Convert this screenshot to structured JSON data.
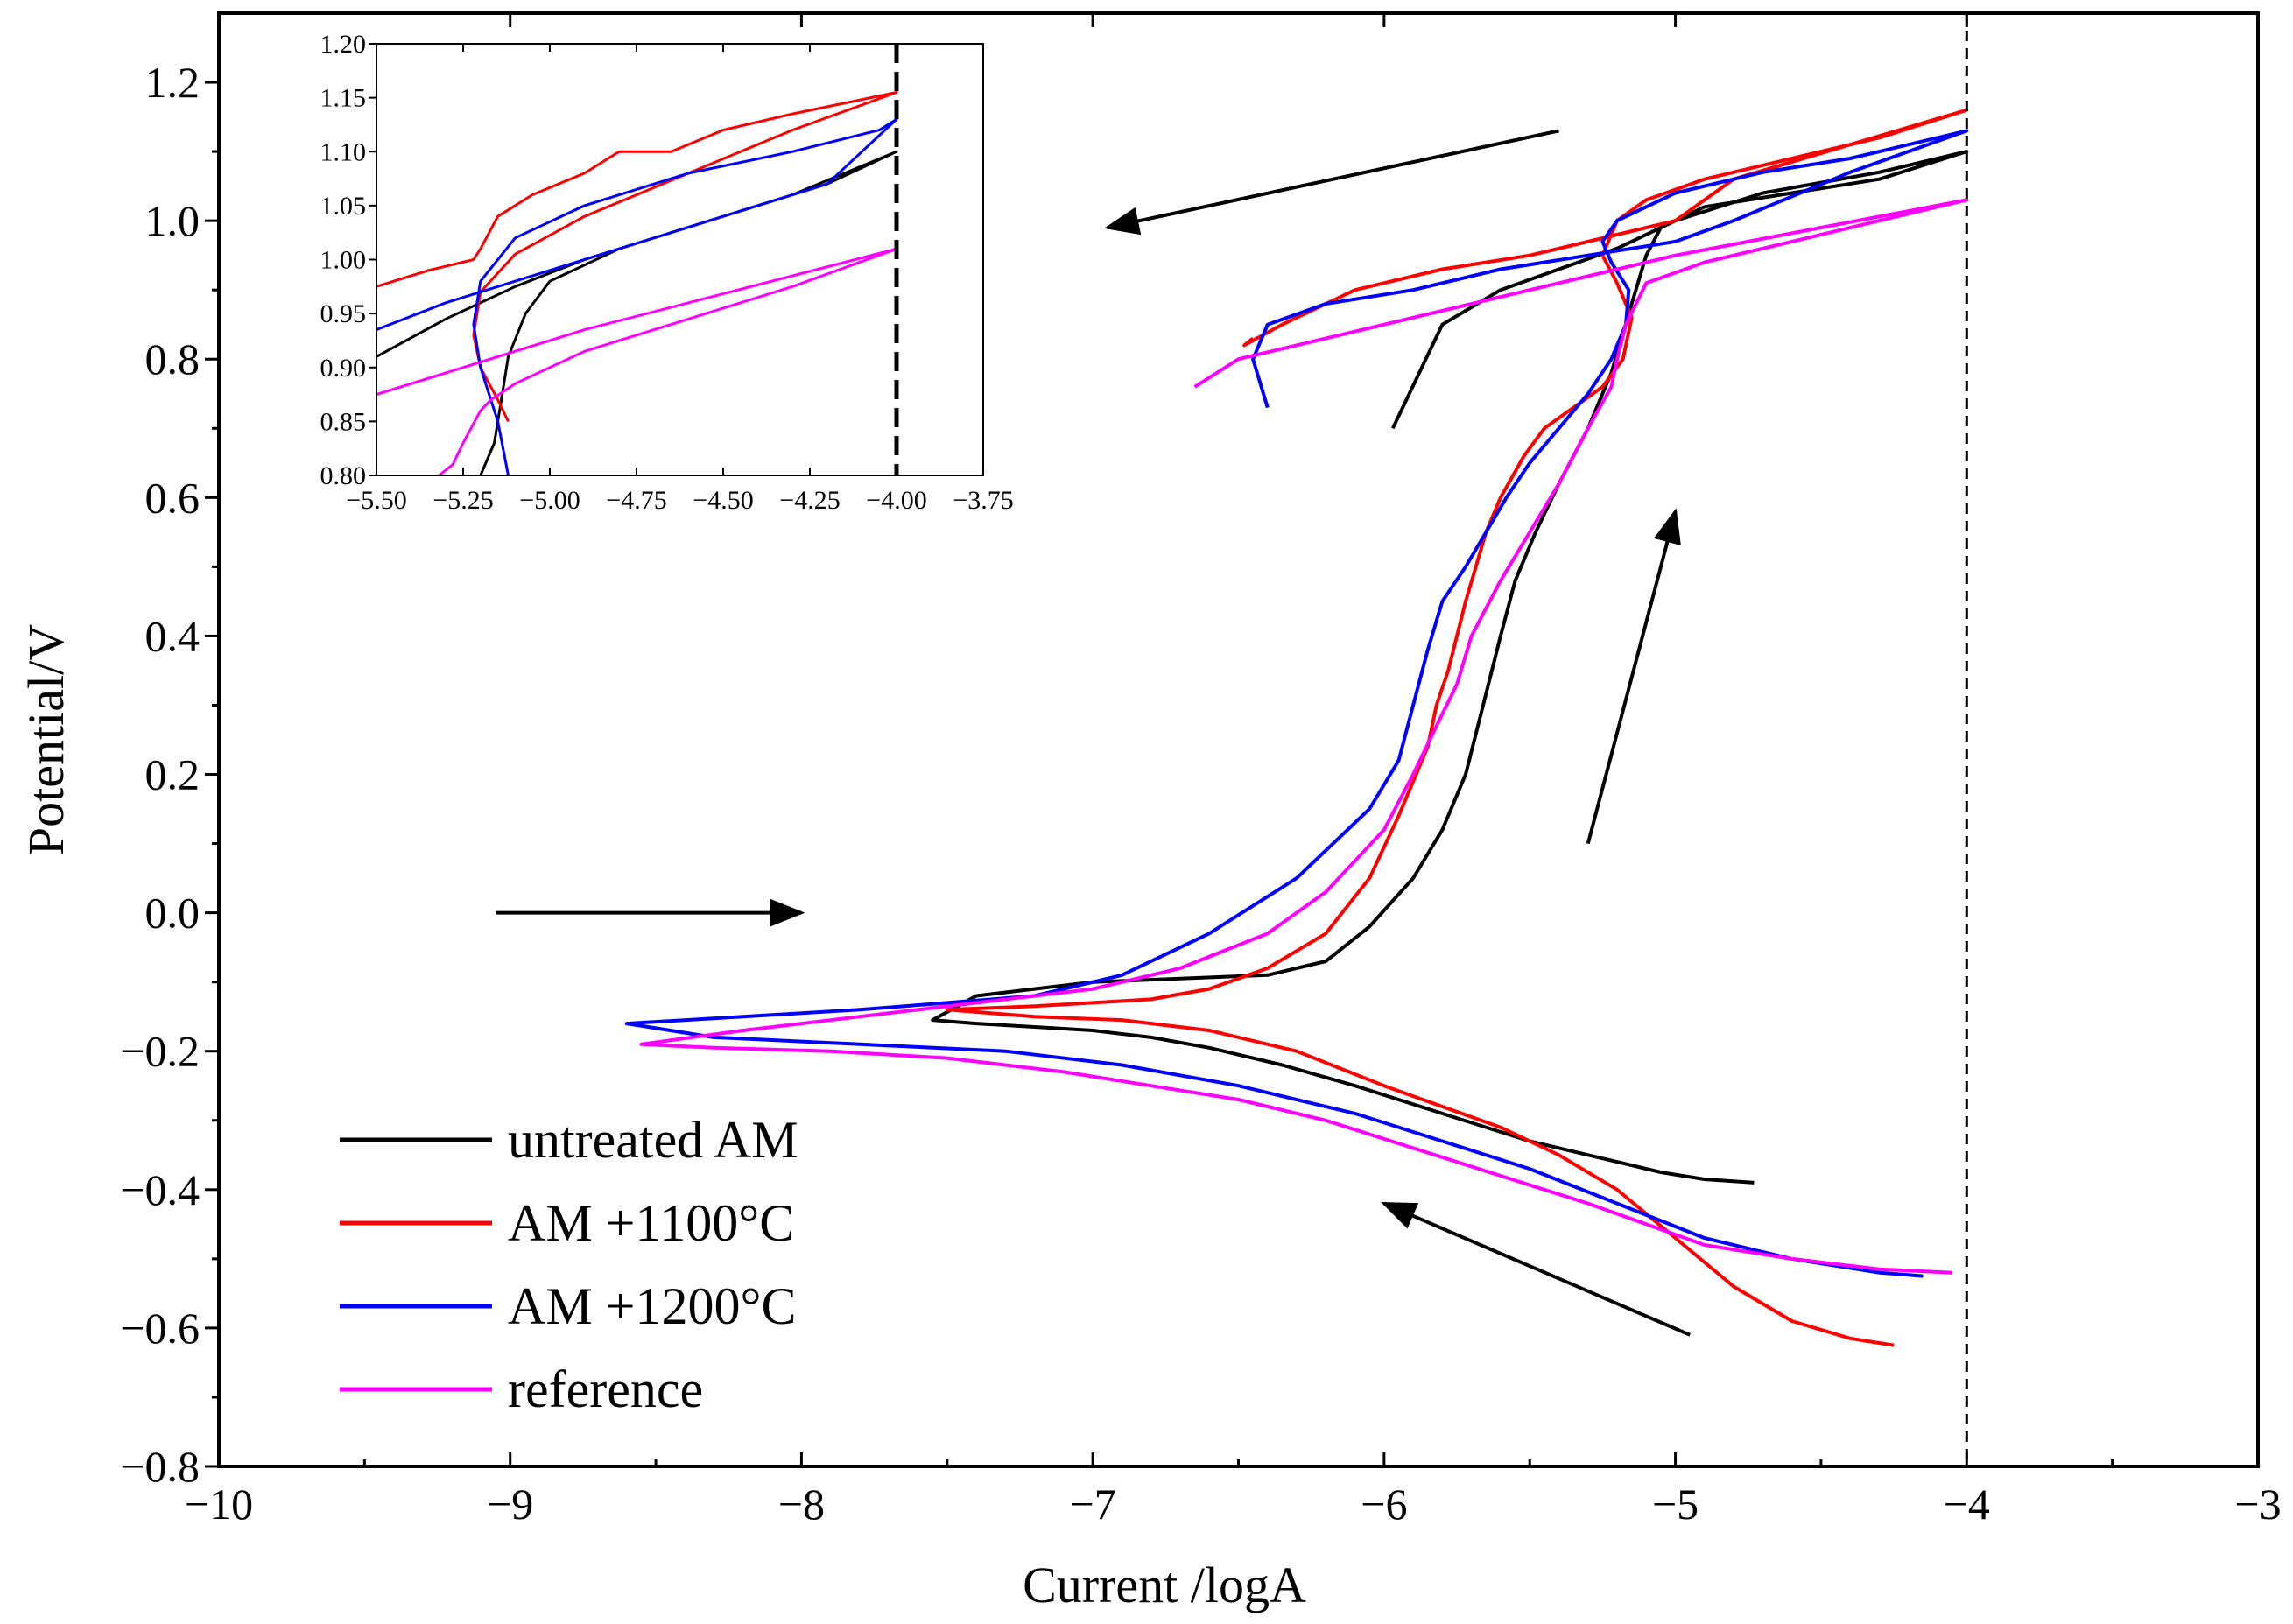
{
  "chart_data": [
    {
      "id": "main",
      "type": "line",
      "xlabel": "Current /logA",
      "ylabel": "Potential/V",
      "xlim": [
        -10,
        -3
      ],
      "ylim": [
        -0.8,
        1.3
      ],
      "xticks": [
        -10,
        -9,
        -8,
        -7,
        -6,
        -5,
        -4,
        -3
      ],
      "xtick_labels": [
        "−10",
        "−9",
        "−8",
        "−7",
        "−6",
        "−5",
        "−4",
        "−3"
      ],
      "yticks": [
        -0.8,
        -0.6,
        -0.4,
        -0.2,
        0.0,
        0.2,
        0.4,
        0.6,
        0.8,
        1.0,
        1.2
      ],
      "ytick_labels": [
        "−0.8",
        "−0.6",
        "−0.4",
        "−0.2",
        "0.0",
        "0.2",
        "0.4",
        "0.6",
        "0.8",
        "1.0",
        "1.2"
      ],
      "vline_x": -4,
      "legend": {
        "position": "bottom-left",
        "entries": [
          "untreated AM",
          "AM +1100°C",
          "AM +1200°C",
          "reference"
        ]
      },
      "arrows": [
        {
          "name": "forward-scan-arrow",
          "from": [
            -9.05,
            0.0
          ],
          "to": [
            -8.0,
            0.0
          ]
        },
        {
          "name": "anodic-rise-arrow",
          "from": [
            -5.3,
            0.1
          ],
          "to": [
            -5.0,
            0.58
          ]
        },
        {
          "name": "reverse-scan-arrow",
          "from": [
            -5.4,
            1.13
          ],
          "to": [
            -6.95,
            0.99
          ]
        },
        {
          "name": "cathodic-return-arrow",
          "from": [
            -4.95,
            -0.61
          ],
          "to": [
            -6.0,
            -0.42
          ]
        }
      ],
      "series": [
        {
          "name": "untreated AM",
          "color": "#000000",
          "x": [
            -4.73,
            -4.9,
            -5.05,
            -5.25,
            -5.5,
            -5.8,
            -6.1,
            -6.35,
            -6.6,
            -6.8,
            -7.0,
            -7.2,
            -7.4,
            -7.55,
            -7.4,
            -7.0,
            -6.7,
            -6.4,
            -6.2,
            -6.05,
            -5.9,
            -5.8,
            -5.72,
            -5.66,
            -5.6,
            -5.55,
            -5.48,
            -5.4,
            -5.3,
            -5.22,
            -5.17,
            -5.15,
            -5.1,
            -5.05,
            -4.9,
            -4.6,
            -4.3,
            -4.0,
            -4.3,
            -4.7,
            -5.0,
            -5.2,
            -5.4,
            -5.6,
            -5.8,
            -5.97
          ],
          "y": [
            -0.39,
            -0.385,
            -0.375,
            -0.355,
            -0.33,
            -0.29,
            -0.25,
            -0.22,
            -0.195,
            -0.18,
            -0.17,
            -0.165,
            -0.16,
            -0.155,
            -0.12,
            -0.1,
            -0.095,
            -0.09,
            -0.07,
            -0.02,
            0.05,
            0.12,
            0.2,
            0.3,
            0.4,
            0.48,
            0.55,
            0.62,
            0.7,
            0.78,
            0.85,
            0.88,
            0.95,
            0.99,
            1.02,
            1.04,
            1.06,
            1.1,
            1.07,
            1.04,
            1.0,
            0.96,
            0.93,
            0.9,
            0.85,
            0.7
          ]
        },
        {
          "name": "AM +1100°C",
          "color": "#ff0000",
          "x": [
            -4.25,
            -4.4,
            -4.6,
            -4.8,
            -5.0,
            -5.2,
            -5.4,
            -5.6,
            -5.8,
            -6.0,
            -6.3,
            -6.6,
            -6.9,
            -7.2,
            -7.5,
            -7.2,
            -7.0,
            -6.8,
            -6.6,
            -6.4,
            -6.2,
            -6.05,
            -5.95,
            -5.85,
            -5.82,
            -5.78,
            -5.72,
            -5.65,
            -5.6,
            -5.52,
            -5.45,
            -5.35,
            -5.25,
            -5.18,
            -5.15,
            -5.2,
            -5.25,
            -5.2,
            -5.1,
            -4.9,
            -4.6,
            -4.3,
            -4.0,
            -4.4,
            -4.8,
            -5.0,
            -5.2,
            -5.5,
            -5.8,
            -6.1,
            -6.35,
            -6.48,
            -6.45
          ],
          "y": [
            -0.625,
            -0.615,
            -0.59,
            -0.54,
            -0.47,
            -0.4,
            -0.35,
            -0.31,
            -0.28,
            -0.25,
            -0.2,
            -0.17,
            -0.155,
            -0.15,
            -0.14,
            -0.135,
            -0.13,
            -0.125,
            -0.11,
            -0.08,
            -0.03,
            0.05,
            0.14,
            0.24,
            0.3,
            0.35,
            0.45,
            0.55,
            0.6,
            0.66,
            0.7,
            0.73,
            0.76,
            0.8,
            0.86,
            0.91,
            0.95,
            1.0,
            1.03,
            1.06,
            1.09,
            1.12,
            1.16,
            1.11,
            1.06,
            1.0,
            0.98,
            0.95,
            0.93,
            0.9,
            0.85,
            0.82,
            0.83
          ]
        },
        {
          "name": "AM +1200°C",
          "color": "#0000ff",
          "x": [
            -4.15,
            -4.3,
            -4.6,
            -4.9,
            -5.2,
            -5.5,
            -5.8,
            -6.1,
            -6.5,
            -6.9,
            -7.3,
            -7.8,
            -8.3,
            -8.6,
            -8.2,
            -7.8,
            -7.5,
            -7.2,
            -6.9,
            -6.6,
            -6.3,
            -6.05,
            -5.95,
            -5.9,
            -5.85,
            -5.8,
            -5.72,
            -5.65,
            -5.58,
            -5.5,
            -5.4,
            -5.3,
            -5.22,
            -5.17,
            -5.16,
            -5.22,
            -5.25,
            -5.2,
            -5.0,
            -4.7,
            -4.4,
            -4.0,
            -4.4,
            -4.8,
            -5.0,
            -5.3,
            -5.6,
            -5.9,
            -6.2,
            -6.4,
            -6.45,
            -6.4
          ],
          "y": [
            -0.525,
            -0.52,
            -0.5,
            -0.47,
            -0.42,
            -0.37,
            -0.33,
            -0.29,
            -0.25,
            -0.22,
            -0.2,
            -0.19,
            -0.18,
            -0.16,
            -0.15,
            -0.14,
            -0.13,
            -0.12,
            -0.09,
            -0.03,
            0.05,
            0.15,
            0.22,
            0.3,
            0.38,
            0.45,
            0.5,
            0.55,
            0.6,
            0.65,
            0.7,
            0.75,
            0.8,
            0.85,
            0.9,
            0.94,
            0.97,
            1.0,
            1.04,
            1.07,
            1.09,
            1.13,
            1.07,
            1.0,
            0.97,
            0.95,
            0.93,
            0.9,
            0.88,
            0.85,
            0.8,
            0.73
          ]
        },
        {
          "name": "reference",
          "color": "#ff00ff",
          "x": [
            -4.05,
            -4.3,
            -4.6,
            -4.9,
            -5.1,
            -5.3,
            -5.6,
            -5.9,
            -6.2,
            -6.5,
            -6.8,
            -7.1,
            -7.5,
            -7.9,
            -8.3,
            -8.55,
            -8.2,
            -7.8,
            -7.4,
            -7.0,
            -6.7,
            -6.4,
            -6.2,
            -6.0,
            -5.9,
            -5.82,
            -5.75,
            -5.7,
            -5.6,
            -5.5,
            -5.4,
            -5.3,
            -5.22,
            -5.2,
            -5.17,
            -5.1,
            -4.9,
            -4.6,
            -4.3,
            -4.0,
            -4.5,
            -5.0,
            -5.5,
            -6.0,
            -6.5,
            -6.65
          ],
          "y": [
            -0.52,
            -0.515,
            -0.5,
            -0.48,
            -0.45,
            -0.42,
            -0.38,
            -0.34,
            -0.3,
            -0.27,
            -0.25,
            -0.23,
            -0.21,
            -0.2,
            -0.195,
            -0.19,
            -0.17,
            -0.15,
            -0.13,
            -0.11,
            -0.08,
            -0.03,
            0.03,
            0.12,
            0.2,
            0.27,
            0.33,
            0.4,
            0.48,
            0.55,
            0.62,
            0.7,
            0.76,
            0.8,
            0.85,
            0.91,
            0.94,
            0.97,
            1.0,
            1.03,
            0.99,
            0.95,
            0.9,
            0.85,
            0.8,
            0.76
          ]
        }
      ]
    },
    {
      "id": "inset",
      "type": "line",
      "xlabel": "",
      "ylabel": "",
      "xlim": [
        -5.5,
        -3.75
      ],
      "ylim": [
        0.8,
        1.2
      ],
      "xticks": [
        -5.5,
        -5.25,
        -5.0,
        -4.75,
        -4.5,
        -4.25,
        -4.0,
        -3.75
      ],
      "xtick_labels": [
        "−5.50",
        "−5.25",
        "−5.00",
        "−4.75",
        "−4.50",
        "−4.25",
        "−4.00",
        "−3.75"
      ],
      "yticks": [
        0.8,
        0.85,
        0.9,
        0.95,
        1.0,
        1.05,
        1.1,
        1.15,
        1.2
      ],
      "ytick_labels": [
        "0.80",
        "0.85",
        "0.90",
        "0.95",
        "1.00",
        "1.05",
        "1.10",
        "1.15",
        "1.20"
      ],
      "vline_x": -4,
      "series": [
        {
          "name": "untreated AM",
          "color": "#000000",
          "x": [
            -5.5,
            -5.3,
            -5.1,
            -4.9,
            -4.6,
            -4.3,
            -4.0,
            -4.2,
            -4.5,
            -4.8,
            -5.0,
            -5.07,
            -5.12,
            -5.14,
            -5.16,
            -5.2
          ],
          "y": [
            0.91,
            0.945,
            0.975,
            1.0,
            1.03,
            1.06,
            1.1,
            1.07,
            1.04,
            1.01,
            0.98,
            0.95,
            0.91,
            0.87,
            0.83,
            0.8
          ]
        },
        {
          "name": "AM +1100°C",
          "color": "#ff0000",
          "x": [
            -5.5,
            -5.35,
            -5.22,
            -5.2,
            -5.15,
            -5.05,
            -4.9,
            -4.8,
            -4.65,
            -4.5,
            -4.3,
            -4.0,
            -4.3,
            -4.6,
            -4.9,
            -5.1,
            -5.2,
            -5.22,
            -5.2,
            -5.15,
            -5.12
          ],
          "y": [
            0.975,
            0.99,
            1.0,
            1.01,
            1.04,
            1.06,
            1.08,
            1.1,
            1.1,
            1.12,
            1.135,
            1.155,
            1.12,
            1.08,
            1.04,
            1.005,
            0.97,
            0.93,
            0.9,
            0.87,
            0.85
          ]
        },
        {
          "name": "AM +1200°C",
          "color": "#0000ff",
          "x": [
            -5.5,
            -5.3,
            -5.0,
            -4.7,
            -4.4,
            -4.2,
            -4.0,
            -4.05,
            -4.3,
            -4.6,
            -4.9,
            -5.1,
            -5.2,
            -5.22,
            -5.2,
            -5.15,
            -5.12
          ],
          "y": [
            0.935,
            0.96,
            0.99,
            1.02,
            1.05,
            1.07,
            1.13,
            1.12,
            1.1,
            1.08,
            1.05,
            1.02,
            0.98,
            0.94,
            0.9,
            0.85,
            0.8
          ]
        },
        {
          "name": "reference",
          "color": "#ff00ff",
          "x": [
            -5.5,
            -5.2,
            -4.9,
            -4.6,
            -4.3,
            -4.0,
            -4.3,
            -4.6,
            -4.9,
            -5.1,
            -5.17,
            -5.2,
            -5.25,
            -5.28,
            -5.32
          ],
          "y": [
            0.875,
            0.905,
            0.935,
            0.96,
            0.985,
            1.01,
            0.975,
            0.945,
            0.915,
            0.885,
            0.87,
            0.86,
            0.83,
            0.81,
            0.8
          ]
        }
      ]
    }
  ]
}
